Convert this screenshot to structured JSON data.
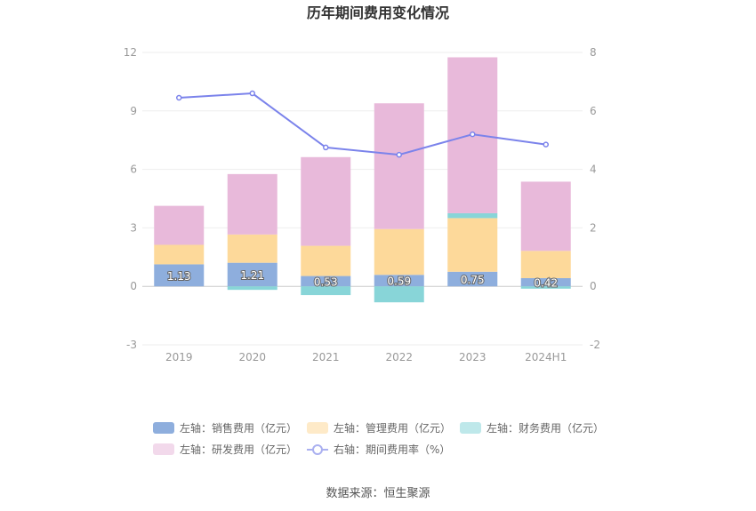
{
  "chart_data": {
    "type": "bar",
    "title": "历年期间费用变化情况",
    "categories": [
      "2019",
      "2020",
      "2021",
      "2022",
      "2023",
      "2024H1"
    ],
    "left_axis": {
      "ylim": [
        -3,
        12
      ],
      "ticks": [
        "-3",
        "0",
        "3",
        "6",
        "9",
        "12"
      ]
    },
    "right_axis": {
      "ylim": [
        -2,
        8
      ],
      "ticks": [
        "-2",
        "0",
        "2",
        "4",
        "6",
        "8"
      ]
    },
    "series": [
      {
        "name": "左轴：销售费用（亿元）",
        "type": "bar",
        "axis": "left",
        "color": "#8eaedd",
        "values": [
          1.13,
          1.21,
          0.53,
          0.59,
          0.75,
          0.42
        ],
        "labels": [
          "1.13",
          "1.21",
          "0.53",
          "0.59",
          "0.75",
          "0.42"
        ]
      },
      {
        "name": "左轴：管理费用（亿元）",
        "type": "bar",
        "axis": "left",
        "color": "#fdd99a",
        "values": [
          1.0,
          1.45,
          1.55,
          2.35,
          2.75,
          1.4
        ]
      },
      {
        "name": "左轴：财务费用（亿元）",
        "type": "bar",
        "axis": "left",
        "color": "#88d5d8",
        "values": [
          0.0,
          -0.18,
          -0.45,
          -0.82,
          0.25,
          -0.12
        ]
      },
      {
        "name": "左轴：研发费用（亿元）",
        "type": "bar",
        "axis": "left",
        "color": "#e8b9da",
        "values": [
          2.0,
          3.1,
          4.55,
          6.45,
          8.0,
          3.55
        ]
      },
      {
        "name": "右轴：期间费用率（%）",
        "type": "line",
        "axis": "right",
        "color": "#7b83eb",
        "values": [
          6.45,
          6.6,
          4.75,
          4.5,
          5.2,
          4.85
        ]
      }
    ],
    "legend_position": "bottom",
    "grid": true,
    "source": "数据来源：恒生聚源"
  }
}
